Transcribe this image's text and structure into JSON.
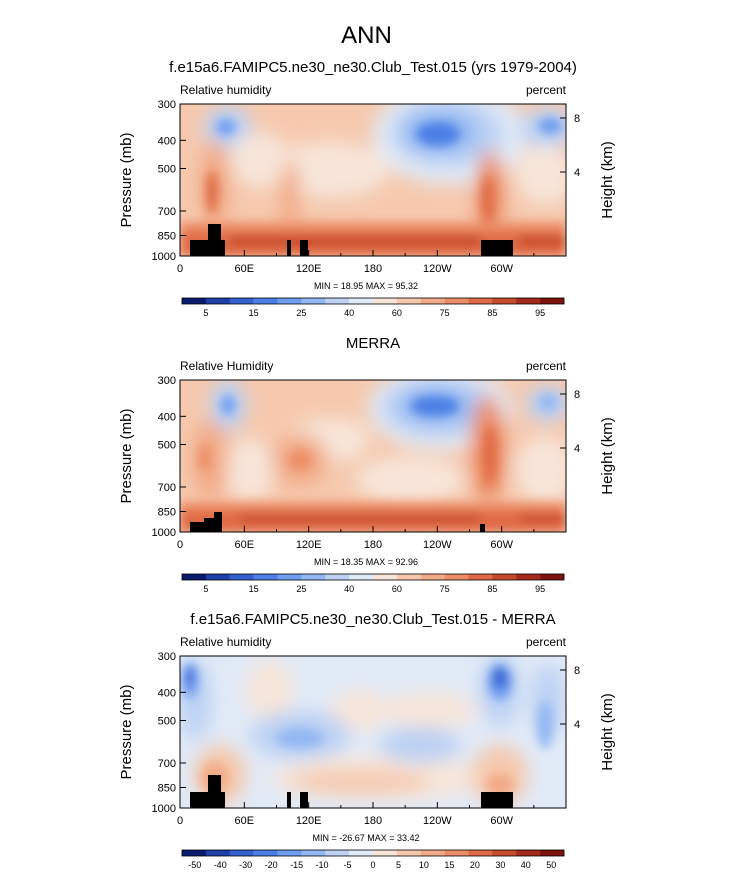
{
  "title": "ANN",
  "chart_data": [
    {
      "type": "heatmap",
      "title": "f.e15a6.FAMIPC5.ne30_ne30.Club_Test.015 (yrs 1979-2004)",
      "left_label": "Relative humidity",
      "right_label": "percent",
      "ylabel": "Pressure (mb)",
      "y2label": "Height (km)",
      "y_ticks": [
        "300",
        "400",
        "500",
        "700",
        "850",
        "1000"
      ],
      "y2_ticks": [
        "8",
        "4"
      ],
      "x_ticks": [
        "0",
        "60E",
        "120E",
        "180",
        "120W",
        "60W"
      ],
      "stats": "MIN =  18.95  MAX =  95.32",
      "min": 18.95,
      "max": 95.32,
      "colorbar_labels": [
        "5",
        "15",
        "25",
        "40",
        "60",
        "75",
        "85",
        "95"
      ]
    },
    {
      "type": "heatmap",
      "title": "MERRA",
      "left_label": "Relative Humidity",
      "right_label": "percent",
      "ylabel": "Pressure (mb)",
      "y2label": "Height (km)",
      "y_ticks": [
        "300",
        "400",
        "500",
        "700",
        "850",
        "1000"
      ],
      "y2_ticks": [
        "8",
        "4"
      ],
      "x_ticks": [
        "0",
        "60E",
        "120E",
        "180",
        "120W",
        "60W"
      ],
      "stats": "MIN =  18.35  MAX =  92.96",
      "min": 18.35,
      "max": 92.96,
      "colorbar_labels": [
        "5",
        "15",
        "25",
        "40",
        "60",
        "75",
        "85",
        "95"
      ]
    },
    {
      "type": "heatmap",
      "title": "f.e15a6.FAMIPC5.ne30_ne30.Club_Test.015 - MERRA",
      "left_label": "Relative humidity",
      "right_label": "percent",
      "ylabel": "Pressure (mb)",
      "y2label": "Height (km)",
      "y_ticks": [
        "300",
        "400",
        "500",
        "700",
        "850",
        "1000"
      ],
      "y2_ticks": [
        "8",
        "4"
      ],
      "x_ticks": [
        "0",
        "60E",
        "120E",
        "180",
        "120W",
        "60W"
      ],
      "stats": "MIN = -26.67  MAX =  33.42",
      "min": -26.67,
      "max": 33.42,
      "colorbar_labels": [
        "-50",
        "-40",
        "-30",
        "-20",
        "-15",
        "-10",
        "-5",
        "0",
        "5",
        "10",
        "15",
        "20",
        "30",
        "40",
        "50"
      ]
    }
  ],
  "colors": {
    "abs_palette": [
      "#0a1a6e",
      "#1e3fa8",
      "#3460d0",
      "#4c7fe6",
      "#6e9cf0",
      "#93b7f3",
      "#bcd1f4",
      "#e1eaf7",
      "#f7e5d9",
      "#f6c9ae",
      "#f2ab88",
      "#ec8d66",
      "#e06a45",
      "#c84a2c",
      "#a52a1c",
      "#7d120f"
    ],
    "diff_palette": [
      "#0a1a6e",
      "#1e3fa8",
      "#3460d0",
      "#4c7fe6",
      "#6e9cf0",
      "#93b7f3",
      "#bcd1f4",
      "#e1eaf7",
      "#f7e5d9",
      "#f6c9ae",
      "#f2ab88",
      "#ec8d66",
      "#e06a45",
      "#c84a2c",
      "#a52a1c",
      "#7d120f"
    ],
    "terrain": "#000000"
  }
}
